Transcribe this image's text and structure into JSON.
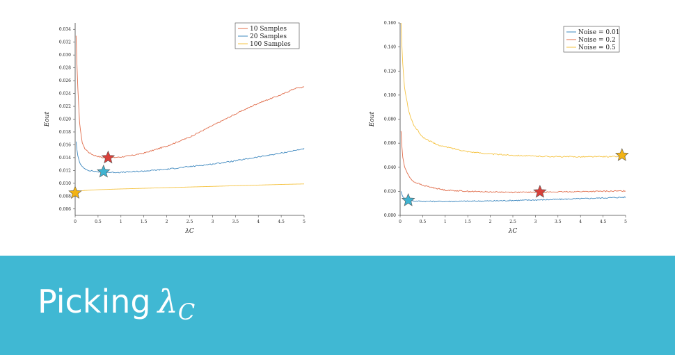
{
  "slide": {
    "title_prefix": "Picking",
    "title_symbol": "λ",
    "title_subscript": "C",
    "banner_color": "#40b8d3"
  },
  "chart_data": [
    {
      "type": "line",
      "xlabel": "λC",
      "ylabel": "Eout",
      "xlim": [
        0,
        5
      ],
      "ylim": [
        0.005,
        0.035
      ],
      "xticks": [
        0,
        0.5,
        1,
        1.5,
        2,
        2.5,
        3,
        3.5,
        4,
        4.5,
        5
      ],
      "yticks": [
        0.006,
        0.008,
        0.01,
        0.012,
        0.014,
        0.016,
        0.018,
        0.02,
        0.022,
        0.024,
        0.026,
        0.028,
        0.03,
        0.032,
        0.034
      ],
      "ytick_labels": [
        "0.006",
        "0.008",
        "0.010",
        "0.012",
        "0.014",
        "0.016",
        "0.018",
        "0.020",
        "0.022",
        "0.024",
        "0.026",
        "0.028",
        "0.030",
        "0.032",
        "0.034"
      ],
      "grid": false,
      "legend": "top-right",
      "series": [
        {
          "name": "10 Samples",
          "color": "#e06c4a",
          "x": [
            0.02,
            0.05,
            0.1,
            0.15,
            0.2,
            0.3,
            0.4,
            0.5,
            0.6,
            0.7,
            0.8,
            1.0,
            1.2,
            1.5,
            2.0,
            2.5,
            3.0,
            3.5,
            4.0,
            4.5,
            4.8,
            5.0
          ],
          "y": [
            0.033,
            0.026,
            0.019,
            0.0165,
            0.0155,
            0.0148,
            0.0144,
            0.0142,
            0.014,
            0.014,
            0.014,
            0.0141,
            0.0143,
            0.0147,
            0.0158,
            0.0172,
            0.019,
            0.0208,
            0.0225,
            0.0238,
            0.0248,
            0.025
          ],
          "marker": {
            "x": 0.72,
            "y": 0.014,
            "color": "#d9403a"
          }
        },
        {
          "name": "20 Samples",
          "color": "#3e88bf",
          "x": [
            0.02,
            0.05,
            0.1,
            0.15,
            0.2,
            0.3,
            0.4,
            0.5,
            0.6,
            0.8,
            1.0,
            1.5,
            2.0,
            2.5,
            3.0,
            3.5,
            4.0,
            4.5,
            5.0
          ],
          "y": [
            0.0165,
            0.0145,
            0.0132,
            0.0126,
            0.0123,
            0.012,
            0.0119,
            0.0118,
            0.0117,
            0.0117,
            0.0117,
            0.0119,
            0.0122,
            0.0126,
            0.013,
            0.0135,
            0.0141,
            0.0147,
            0.0154
          ],
          "marker": {
            "x": 0.62,
            "y": 0.0118,
            "color": "#3fb3d1"
          }
        },
        {
          "name": "100 Samples",
          "color": "#f5c342",
          "x": [
            0,
            0.05,
            0.2,
            0.5,
            1.0,
            1.5,
            2.0,
            2.5,
            3.0,
            3.5,
            4.0,
            4.5,
            5.0
          ],
          "y": [
            0.0085,
            0.00875,
            0.00888,
            0.009,
            0.00912,
            0.00922,
            0.00932,
            0.00942,
            0.00952,
            0.00962,
            0.00972,
            0.00982,
            0.0099
          ],
          "marker": {
            "x": 0.0,
            "y": 0.0085,
            "color": "#f2b315"
          }
        }
      ]
    },
    {
      "type": "line",
      "xlabel": "λC",
      "ylabel": "Eout",
      "xlim": [
        0,
        5
      ],
      "ylim": [
        0,
        0.16
      ],
      "xticks": [
        0,
        0.5,
        1,
        1.5,
        2,
        2.5,
        3,
        3.5,
        4,
        4.5,
        5
      ],
      "yticks": [
        0,
        0.02,
        0.04,
        0.06,
        0.08,
        0.1,
        0.12,
        0.14,
        0.16
      ],
      "ytick_labels": [
        "0.000",
        "0.020",
        "0.040",
        "0.060",
        "0.080",
        "0.100",
        "0.120",
        "0.140",
        "0.160"
      ],
      "grid": false,
      "legend": "top-right",
      "series": [
        {
          "name": "Noise = 0.01",
          "color": "#3e88bf",
          "x": [
            0.02,
            0.05,
            0.1,
            0.2,
            0.3,
            0.5,
            1.0,
            1.5,
            2.0,
            2.5,
            3.0,
            3.5,
            4.0,
            4.5,
            5.0
          ],
          "y": [
            0.02,
            0.016,
            0.014,
            0.0125,
            0.012,
            0.0117,
            0.0116,
            0.0118,
            0.012,
            0.0124,
            0.0128,
            0.0133,
            0.0139,
            0.0145,
            0.0151
          ],
          "marker": {
            "x": 0.18,
            "y": 0.0125,
            "color": "#3fb3d1"
          }
        },
        {
          "name": "Noise = 0.2",
          "color": "#e06c4a",
          "x": [
            0.02,
            0.05,
            0.1,
            0.2,
            0.3,
            0.5,
            0.8,
            1.0,
            1.5,
            2.0,
            2.5,
            3.0,
            3.5,
            4.0,
            4.5,
            5.0
          ],
          "y": [
            0.07,
            0.05,
            0.04,
            0.032,
            0.028,
            0.025,
            0.0225,
            0.021,
            0.02,
            0.0195,
            0.0192,
            0.0192,
            0.0195,
            0.0198,
            0.02,
            0.0203
          ],
          "marker": {
            "x": 3.1,
            "y": 0.0195,
            "color": "#d9403a"
          }
        },
        {
          "name": "Noise = 0.5",
          "color": "#f5c342",
          "x": [
            0.02,
            0.05,
            0.1,
            0.2,
            0.3,
            0.5,
            0.8,
            1.0,
            1.5,
            2.0,
            2.5,
            3.0,
            3.5,
            4.0,
            4.5,
            5.0
          ],
          "y": [
            0.16,
            0.13,
            0.105,
            0.085,
            0.075,
            0.065,
            0.059,
            0.057,
            0.053,
            0.051,
            0.05,
            0.0492,
            0.0488,
            0.0487,
            0.0488,
            0.049
          ],
          "marker": {
            "x": 4.92,
            "y": 0.05,
            "color": "#f2b315"
          }
        }
      ]
    }
  ]
}
